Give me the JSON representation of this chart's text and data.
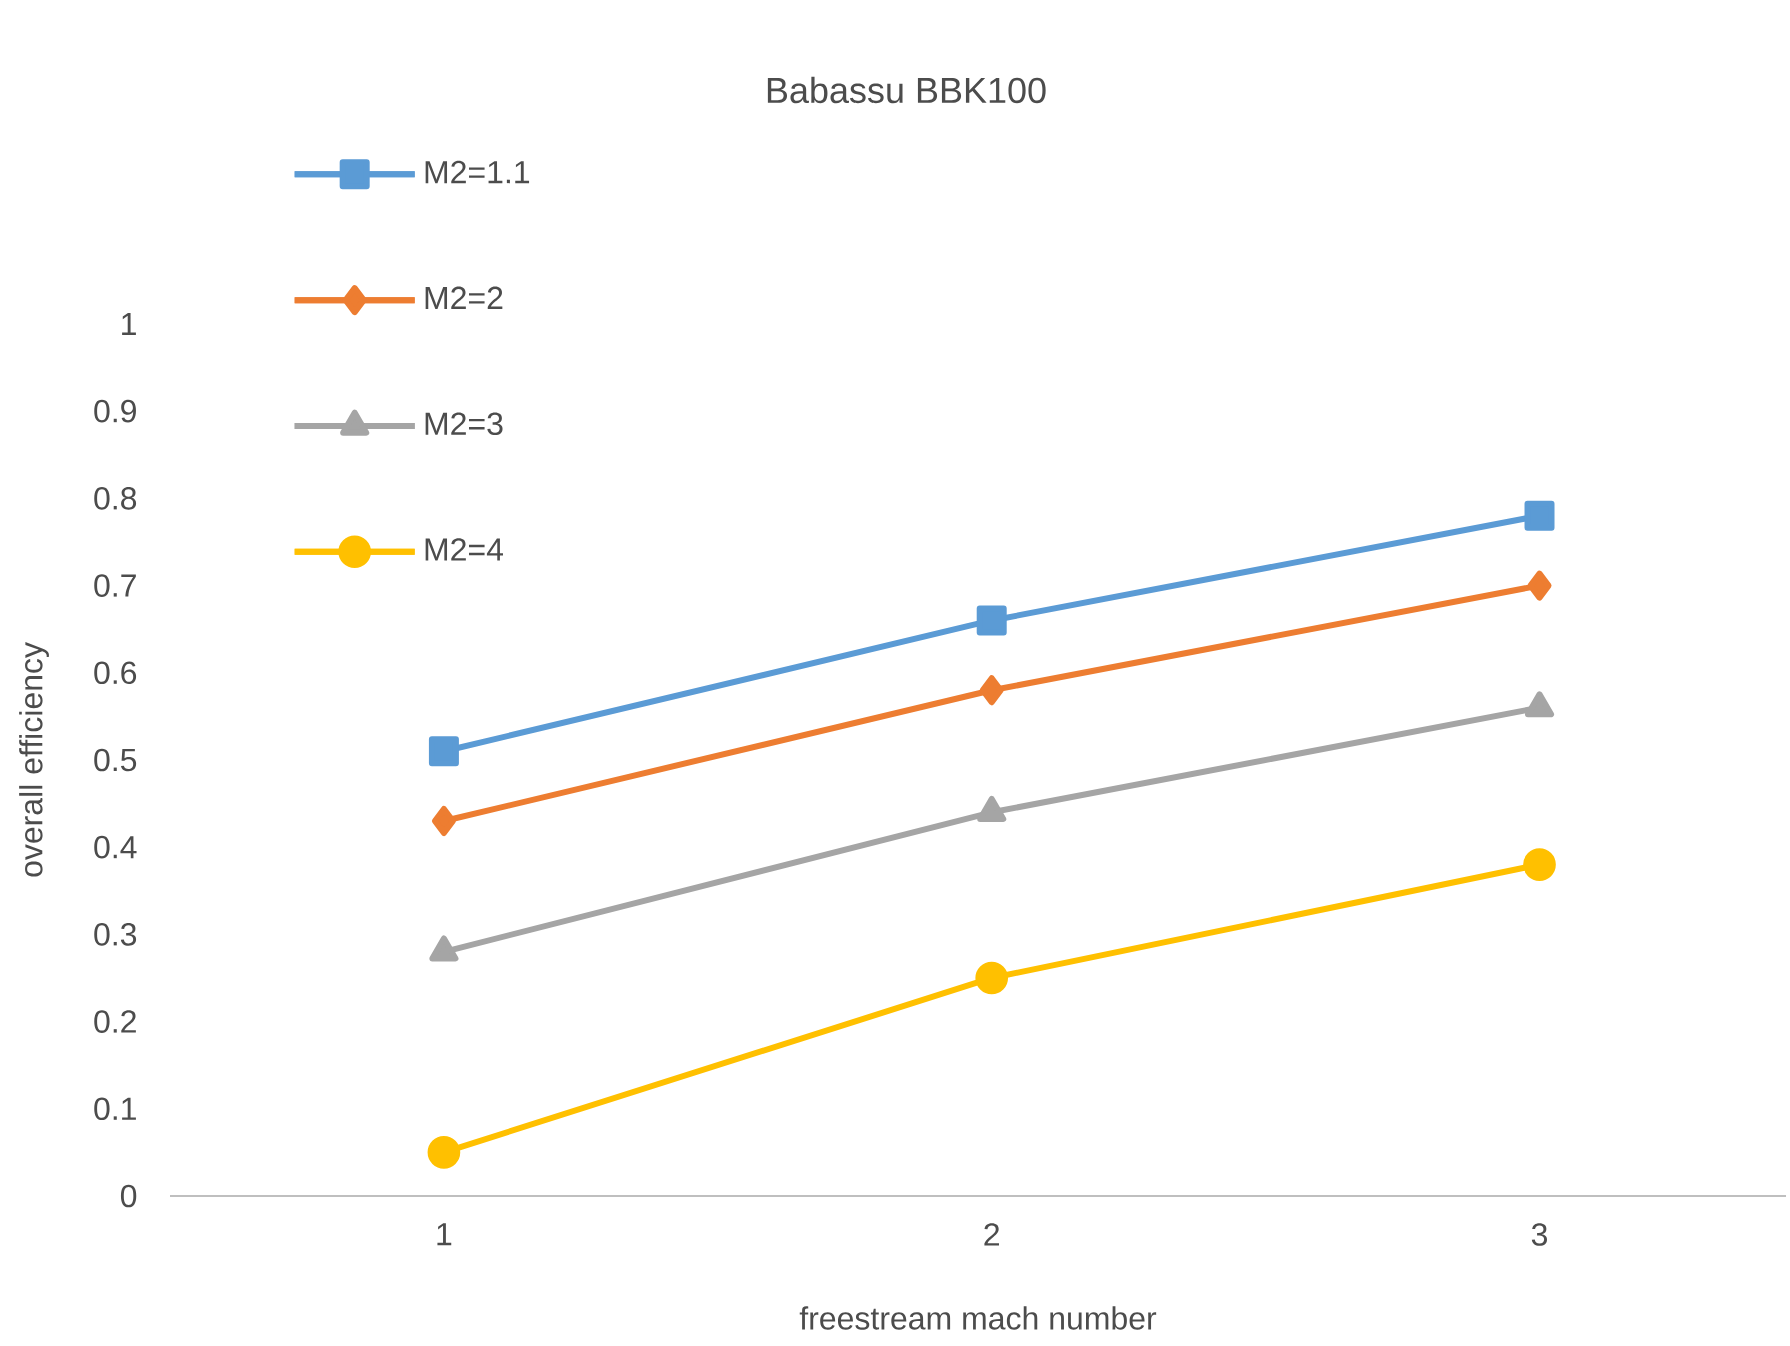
{
  "chart_data": {
    "type": "line",
    "title": "Babassu BBK100",
    "xlabel": "freestream mach number",
    "ylabel": "overall efficiency",
    "categories": [
      "1",
      "2",
      "3"
    ],
    "ylim": [
      0,
      1
    ],
    "yticks": [
      0,
      0.1,
      0.2,
      0.3,
      0.4,
      0.5,
      0.6,
      0.7,
      0.8,
      0.9,
      1
    ],
    "legend": "top left",
    "line_style": "solid",
    "series": [
      {
        "name": "M2=1.1",
        "color": "#5b9bd5",
        "marker": "square",
        "values": [
          0.51,
          0.66,
          0.78
        ]
      },
      {
        "name": "M2=2",
        "color": "#ed7d31",
        "marker": "diamond",
        "values": [
          0.43,
          0.58,
          0.7
        ]
      },
      {
        "name": "M2=3",
        "color": "#a5a5a5",
        "marker": "triangle",
        "values": [
          0.28,
          0.44,
          0.56
        ]
      },
      {
        "name": "M2=4",
        "color": "#ffc000",
        "marker": "circle",
        "values": [
          0.05,
          0.25,
          0.38
        ]
      }
    ]
  }
}
